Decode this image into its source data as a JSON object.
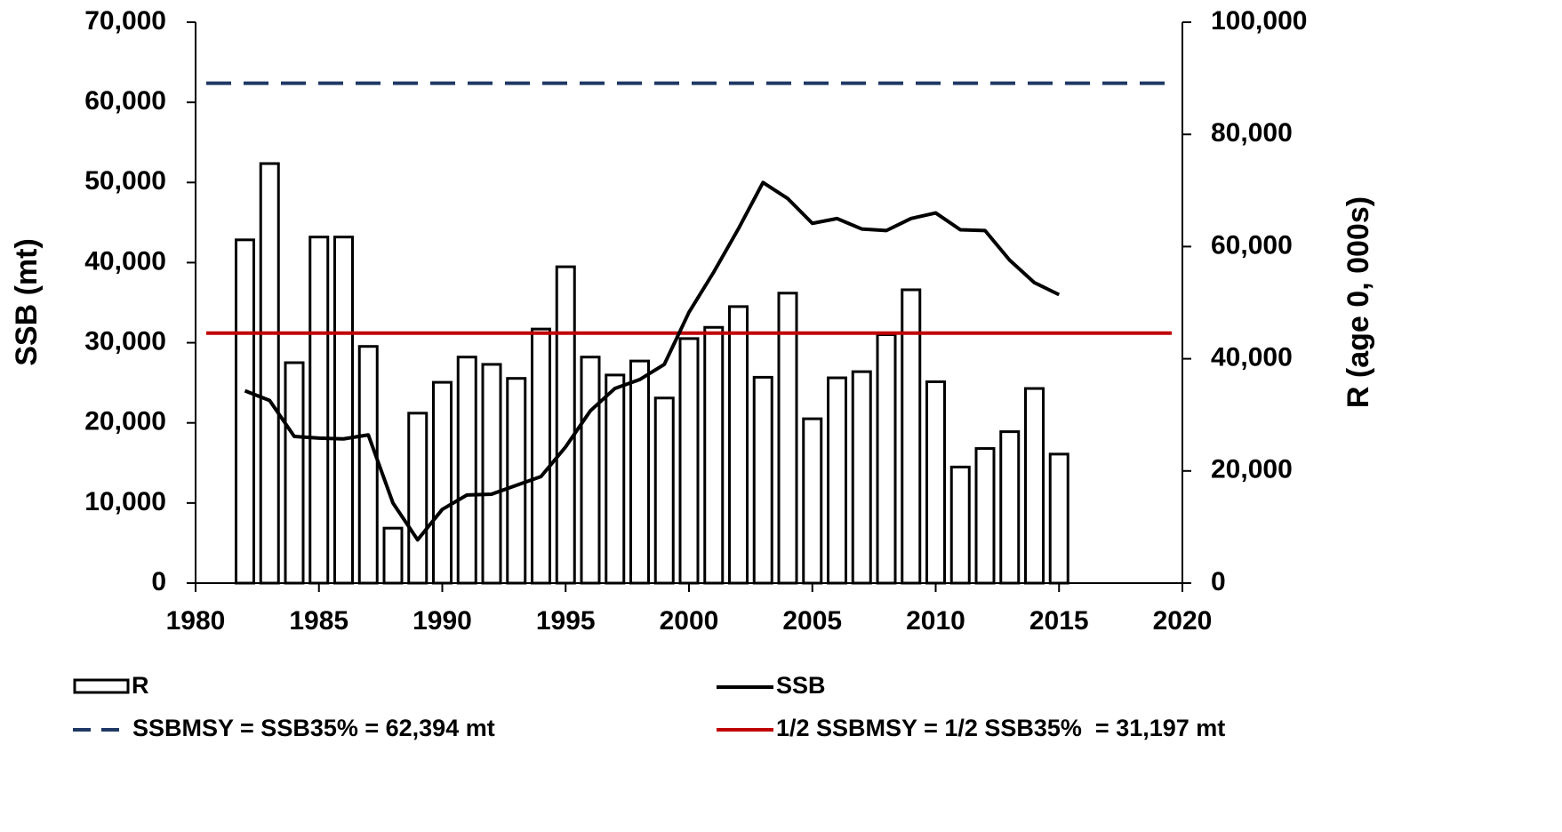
{
  "chart_data": {
    "type": "bar-line",
    "y_label": "SSB (mt)",
    "y2_label": "R (age 0, 000s)",
    "xlim": [
      1980,
      2020
    ],
    "xticks": [
      1980,
      1985,
      1990,
      1995,
      2000,
      2005,
      2010,
      2015,
      2020
    ],
    "ylim": [
      0,
      70000
    ],
    "yticks": [
      0,
      {
        "value": 10000,
        "label": "10,000"
      },
      {
        "value": 20000,
        "label": "20,000"
      },
      {
        "value": 30000,
        "label": "30,000"
      },
      {
        "value": 40000,
        "label": "40,000"
      },
      {
        "value": 50000,
        "label": "50,000"
      },
      {
        "value": 60000,
        "label": "60,000"
      },
      {
        "value": 70000,
        "label": "70,000"
      }
    ],
    "y2lim": [
      0,
      100000
    ],
    "y2ticks": [
      0,
      {
        "value": 20000,
        "label": "20,000"
      },
      {
        "value": 40000,
        "label": "40,000"
      },
      {
        "value": 60000,
        "label": "60,000"
      },
      {
        "value": 80000,
        "label": "80,000"
      },
      {
        "value": 100000,
        "label": "100,000"
      }
    ],
    "x": [
      1982,
      1983,
      1984,
      1985,
      1986,
      1987,
      1988,
      1989,
      1990,
      1991,
      1992,
      1993,
      1994,
      1995,
      1996,
      1997,
      1998,
      1999,
      2000,
      2001,
      2002,
      2003,
      2004,
      2005,
      2006,
      2007,
      2008,
      2009,
      2010,
      2011,
      2012,
      2013,
      2014,
      2015
    ],
    "series": [
      {
        "name": "R",
        "type": "bar",
        "axis": "y2",
        "color": "#000000",
        "values": [
          61200,
          74800,
          39300,
          61700,
          61700,
          42200,
          9800,
          30300,
          35800,
          40300,
          39000,
          36500,
          45300,
          56400,
          40300,
          37100,
          39600,
          33000,
          43600,
          45600,
          49300,
          36700,
          51700,
          29300,
          36600,
          37700,
          44300,
          52300,
          35900,
          20700,
          24000,
          27000,
          34700,
          23000
        ]
      },
      {
        "name": "SSB",
        "type": "line",
        "color": "#000000",
        "values": [
          24000,
          22800,
          18300,
          18100,
          18000,
          18500,
          10000,
          5400,
          9200,
          11000,
          11100,
          12200,
          13300,
          17000,
          21500,
          24300,
          25400,
          27300,
          33800,
          38800,
          44200,
          50000,
          48000,
          44900,
          45500,
          44200,
          44000,
          45500,
          46200,
          44100,
          44000,
          40300,
          37500,
          36000
        ]
      }
    ],
    "hlines": [
      {
        "name": "SSBMSY = SSB35% = 62,394 mt",
        "value": 62394,
        "color": "#1f3864",
        "dashed": true
      },
      {
        "name": "1/2 SSBMSY = 1/2 SSB35%  = 31,197 mt",
        "value": 31197,
        "color": "#c00000",
        "dashed": false
      }
    ]
  }
}
